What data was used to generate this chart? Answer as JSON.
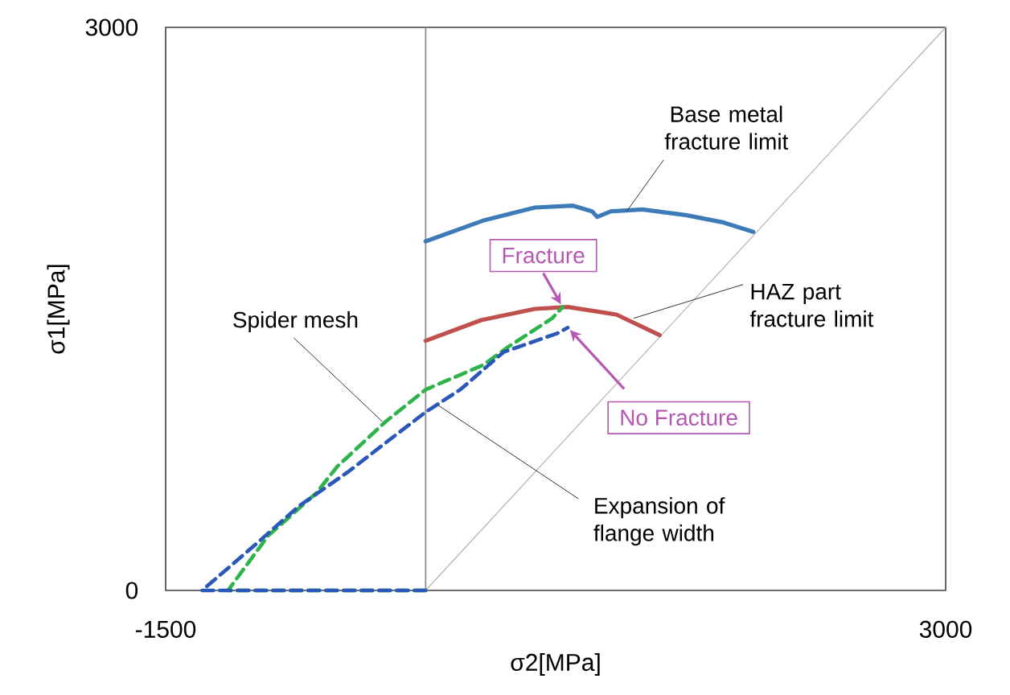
{
  "chart_data": {
    "type": "line",
    "xlabel": "σ2[MPa]",
    "ylabel": "σ1[MPa]",
    "xlim": [
      -1500,
      3000
    ],
    "ylim": [
      0,
      3000
    ],
    "xticks": [
      -1500,
      3000
    ],
    "yticks": [
      0,
      3000
    ],
    "grid": false,
    "ref_lines": [
      {
        "axis": "x",
        "value": 0,
        "color": "#8c8c8c"
      }
    ],
    "series": [
      {
        "color": "#3d7ab8",
        "line_style": "solid",
        "x": [
          0,
          330,
          630,
          850,
          960,
          990,
          1070,
          1250,
          1500,
          1720,
          1890
        ],
        "values": [
          1860,
          1970,
          2040,
          2050,
          2020,
          1990,
          2020,
          2030,
          2000,
          1960,
          1910
        ]
      },
      {
        "color": "#c0504d",
        "line_style": "solid",
        "x": [
          0,
          320,
          630,
          820,
          1100,
          1350
        ],
        "values": [
          1330,
          1440,
          1500,
          1510,
          1470,
          1360
        ]
      },
      {
        "color": "#2eb34a",
        "line_style": "dashed",
        "x": [
          0,
          -1140,
          -910,
          -630,
          -510,
          -230,
          0,
          330,
          480,
          730,
          790
        ],
        "values": [
          0,
          0,
          290,
          520,
          660,
          900,
          1070,
          1200,
          1300,
          1450,
          1510
        ]
      },
      {
        "color": "#2a58b8",
        "line_style": "dashed",
        "x": [
          0,
          -1290,
          -1000,
          -730,
          -450,
          -170,
          0,
          200,
          450,
          760,
          820
        ],
        "values": [
          0,
          0,
          230,
          450,
          630,
          830,
          950,
          1070,
          1270,
          1370,
          1400
        ]
      },
      {
        "color": "#b4b4b4",
        "line_style": "solid",
        "x": [
          0,
          3000
        ],
        "values": [
          0,
          3000
        ]
      }
    ],
    "annotations": [
      {
        "text": "Base metal fracture limit",
        "x": 1160,
        "y": 2020
      },
      {
        "text": "HAZ part fracture limit",
        "x": 1200,
        "y": 1450
      },
      {
        "text": "Spider mesh",
        "x": -250,
        "y": 900
      },
      {
        "text": "Expansion of flange width",
        "x": 75,
        "y": 985
      },
      {
        "text": "Fracture",
        "x": 790,
        "y": 1510
      },
      {
        "text": "No Fracture",
        "x": 820,
        "y": 1400
      }
    ]
  }
}
